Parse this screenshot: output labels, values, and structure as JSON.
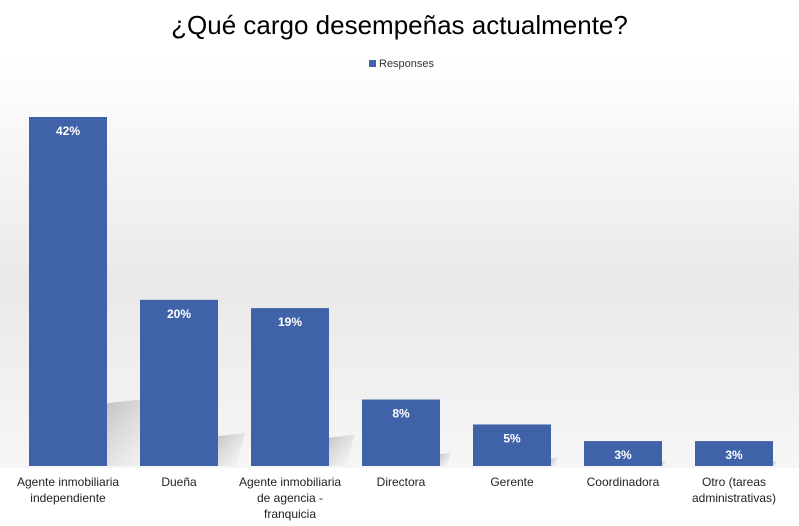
{
  "chart_data": {
    "type": "bar",
    "title": "¿Qué cargo desempeñas actualmente?",
    "legend": {
      "position": "top",
      "entries": [
        "Responses"
      ]
    },
    "series": [
      {
        "name": "Responses",
        "color": "#3f62a8",
        "values": [
          42,
          20,
          19,
          8,
          5,
          3,
          3
        ]
      }
    ],
    "categories": [
      "Agente inmobiliaria independiente",
      "Dueña",
      "Agente inmobiliaria de agencia - franquicia",
      "Directora",
      "Gerente",
      "Coordinadora",
      "Otro (tareas administrativas)"
    ],
    "category_lines": [
      [
        "Agente inmobiliaria",
        "independiente"
      ],
      [
        "Dueña"
      ],
      [
        "Agente inmobiliaria",
        "de agencia -",
        "franquicia"
      ],
      [
        "Directora"
      ],
      [
        "Gerente"
      ],
      [
        "Coordinadora"
      ],
      [
        "Otro (tareas",
        "administrativas)"
      ]
    ],
    "data_labels": [
      "42%",
      "20%",
      "19%",
      "8%",
      "5%",
      "3%",
      "3%"
    ],
    "value_unit": "%",
    "ylim": [
      0,
      42
    ],
    "grid": false,
    "xlabel": "",
    "ylabel": ""
  }
}
